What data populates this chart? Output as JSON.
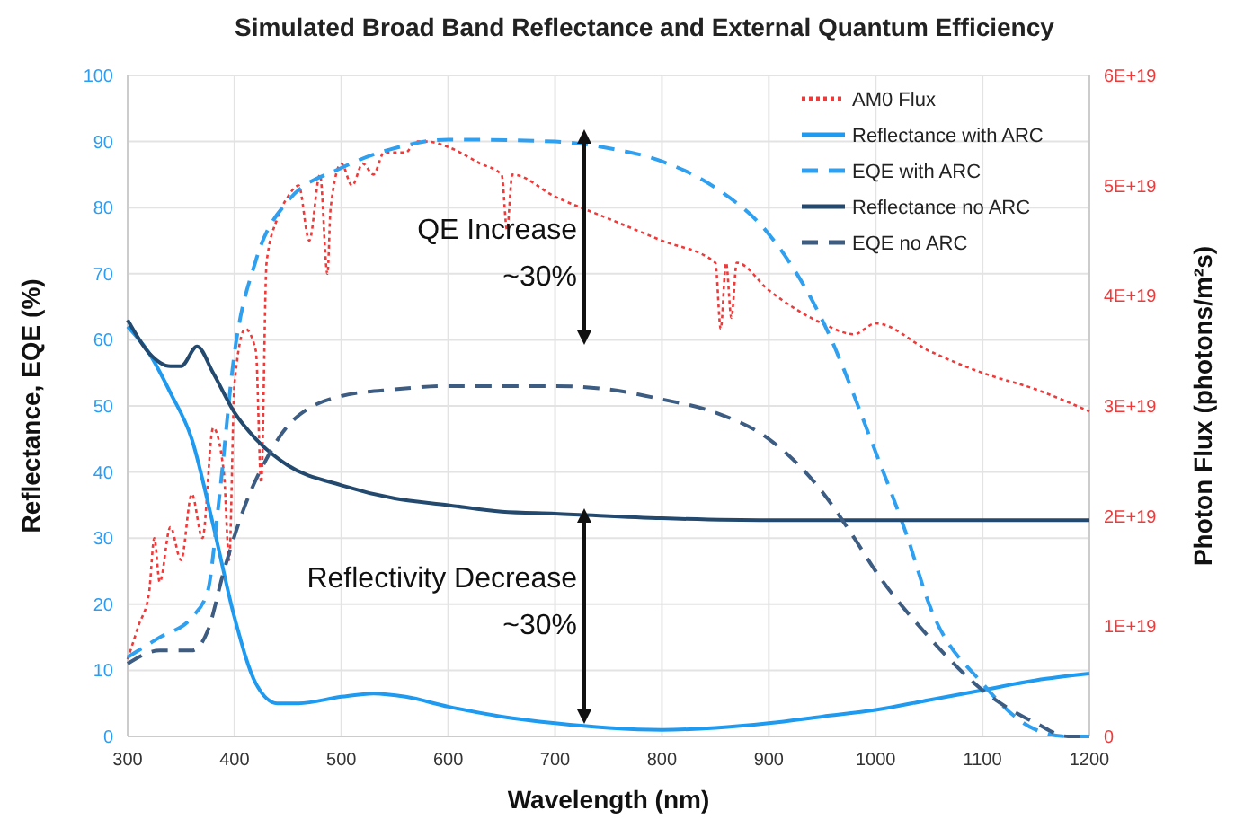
{
  "chart_data": {
    "type": "line",
    "title": "Simulated Broad Band Reflectance and External Quantum Efficiency",
    "xlabel": "Wavelength (nm)",
    "ylabel": "Reflectance, EQE (%)",
    "y2label": "Photon Flux (photons/m²s)",
    "xlim": [
      300,
      1200
    ],
    "xticks": [
      300,
      400,
      500,
      600,
      700,
      800,
      900,
      1000,
      1100,
      1200
    ],
    "ylim": [
      0,
      100
    ],
    "yticks": [
      0,
      10,
      20,
      30,
      40,
      50,
      60,
      70,
      80,
      90,
      100
    ],
    "y2lim": [
      0,
      6e+19
    ],
    "y2ticks": [
      {
        "value": 0,
        "label": "0"
      },
      {
        "value": 1e+19,
        "label": "1E+19"
      },
      {
        "value": 2e+19,
        "label": "2E+19"
      },
      {
        "value": 3e+19,
        "label": "3E+19"
      },
      {
        "value": 4e+19,
        "label": "4E+19"
      },
      {
        "value": 5e+19,
        "label": "5E+19"
      },
      {
        "value": 6e+19,
        "label": "6E+19"
      }
    ],
    "grid": true,
    "legend": "top right",
    "series": [
      {
        "name": "AM0 Flux",
        "color": "#f03a3a",
        "axis": "y2",
        "line_style": "dotted",
        "x": [
          300,
          310,
          320,
          325,
          330,
          340,
          350,
          360,
          370,
          380,
          390,
          395,
          400,
          410,
          420,
          425,
          430,
          440,
          450,
          460,
          470,
          480,
          487,
          490,
          500,
          510,
          520,
          530,
          540,
          560,
          570,
          580,
          600,
          630,
          650,
          655,
          660,
          700,
          750,
          800,
          850,
          855,
          860,
          865,
          870,
          900,
          950,
          980,
          1000,
          1050,
          1100,
          1150,
          1200
        ],
        "values": [
          7e+18,
          1e+19,
          1.3e+19,
          1.8e+19,
          1.4e+19,
          1.9e+19,
          1.6e+19,
          2.2e+19,
          1.8e+19,
          2.8e+19,
          2.4e+19,
          1.6e+19,
          3.2e+19,
          3.7e+19,
          3.5e+19,
          2.3e+19,
          4.3e+19,
          4.7e+19,
          4.9e+19,
          5e+19,
          4.5e+19,
          5.1e+19,
          4.2e+19,
          4.8e+19,
          5.2e+19,
          5e+19,
          5.2e+19,
          5.1e+19,
          5.3e+19,
          5.3e+19,
          5.4e+19,
          5.4e+19,
          5.35e+19,
          5.2e+19,
          5.1e+19,
          4.6e+19,
          5.1e+19,
          4.9e+19,
          4.7e+19,
          4.5e+19,
          4.3e+19,
          3.7e+19,
          4.3e+19,
          3.8e+19,
          4.3e+19,
          4.05e+19,
          3.75e+19,
          3.65e+19,
          3.75e+19,
          3.5e+19,
          3.3e+19,
          3.15e+19,
          2.95e+19
        ]
      },
      {
        "name": "Reflectance with ARC",
        "color": "#1e9bf0",
        "line_style": "solid",
        "x": [
          300,
          320,
          340,
          360,
          380,
          400,
          420,
          440,
          460,
          500,
          530,
          560,
          600,
          650,
          700,
          750,
          800,
          850,
          900,
          950,
          1000,
          1050,
          1100,
          1150,
          1200
        ],
        "values": [
          62,
          58,
          52,
          45,
          32,
          18,
          8,
          5,
          5,
          6,
          6.5,
          6,
          4.5,
          3,
          2,
          1.3,
          1,
          1.3,
          2,
          3,
          4,
          5.5,
          7,
          8.5,
          9.5
        ]
      },
      {
        "name": "EQE with ARC",
        "color": "#2f9ff0",
        "line_style": "dashed",
        "x": [
          300,
          330,
          360,
          375,
          385,
          400,
          420,
          450,
          500,
          550,
          600,
          700,
          750,
          800,
          850,
          900,
          950,
          1000,
          1030,
          1050,
          1100,
          1150,
          1180,
          1200
        ],
        "values": [
          12,
          15,
          18,
          22,
          35,
          58,
          72,
          81,
          86,
          89,
          90.3,
          90,
          89,
          87,
          83,
          76,
          63,
          43,
          30,
          20,
          8,
          1,
          0,
          0
        ]
      },
      {
        "name": "Reflectance no ARC",
        "color": "#234a6e",
        "line_style": "solid",
        "x": [
          300,
          320,
          340,
          350,
          365,
          380,
          400,
          420,
          450,
          500,
          550,
          600,
          650,
          700,
          800,
          900,
          1000,
          1200
        ],
        "values": [
          63,
          58,
          56,
          56,
          59,
          55,
          49,
          45,
          41,
          38,
          36,
          35,
          34,
          33.7,
          33,
          32.7,
          32.7,
          32.7
        ]
      },
      {
        "name": "EQE no ARC",
        "color": "#3d5c82",
        "line_style": "dashed",
        "x": [
          300,
          330,
          360,
          375,
          390,
          410,
          430,
          450,
          500,
          550,
          600,
          700,
          750,
          800,
          850,
          900,
          950,
          980,
          1000,
          1050,
          1100,
          1150,
          1180,
          1200
        ],
        "values": [
          11,
          13,
          13,
          16,
          25,
          35,
          42,
          47,
          51.5,
          52.5,
          53,
          53,
          52.5,
          51,
          49,
          45,
          37,
          30,
          25,
          15,
          7,
          2,
          0,
          0
        ]
      }
    ],
    "annotations": [
      "QE Increase\n~30%",
      "Reflectivity Decrease\n~30%"
    ]
  }
}
